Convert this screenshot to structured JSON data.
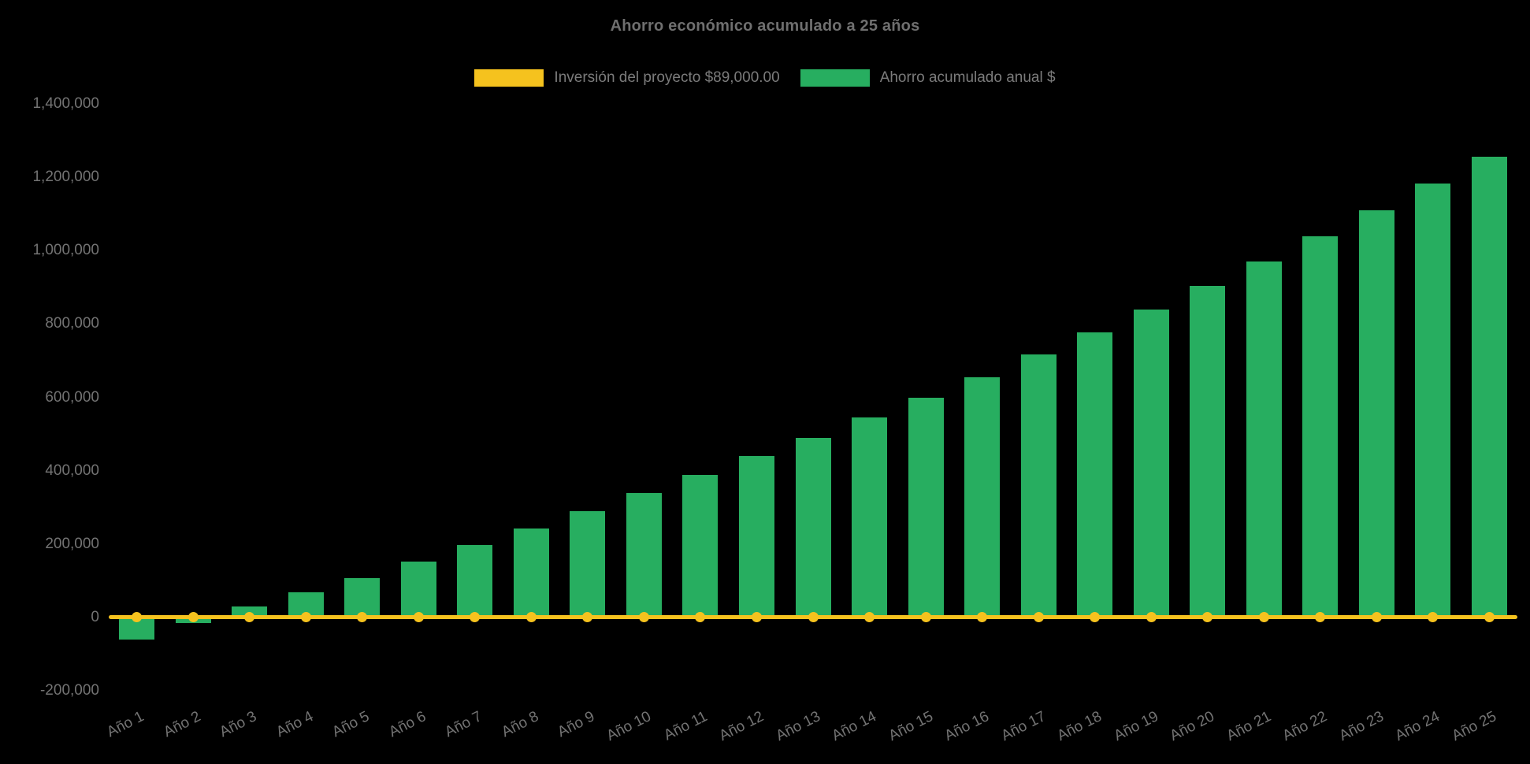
{
  "chart_data": {
    "type": "bar",
    "title": "Ahorro económico acumulado a 25 años",
    "background": "#000000",
    "grid": false,
    "legend_position": "top",
    "ylim": [
      -200000,
      1400000
    ],
    "ytick_step": 200000,
    "yticks": [
      "1,400,000",
      "1,200,000",
      "1,000,000",
      "800,000",
      "600,000",
      "400,000",
      "200,000",
      "0",
      "-200,000"
    ],
    "categories": [
      "Año 1",
      "Año 2",
      "Año 3",
      "Año 4",
      "Año 5",
      "Año 6",
      "Año 7",
      "Año 8",
      "Año 9",
      "Año 10",
      "Año 11",
      "Año 12",
      "Año 13",
      "Año 14",
      "Año 15",
      "Año 16",
      "Año 17",
      "Año 18",
      "Año 19",
      "Año 20",
      "Año 21",
      "Año 22",
      "Año 23",
      "Año 24",
      "Año 25"
    ],
    "series": [
      {
        "name": "Inversión del proyecto $89,000.00",
        "type": "line",
        "color": "#F5C21E",
        "values": [
          0,
          0,
          0,
          0,
          0,
          0,
          0,
          0,
          0,
          0,
          0,
          0,
          0,
          0,
          0,
          0,
          0,
          0,
          0,
          0,
          0,
          0,
          0,
          0,
          0
        ]
      },
      {
        "name": "Ahorro acumulado anual $",
        "type": "bar",
        "color": "#27AE60",
        "values": [
          -60000,
          -15000,
          30000,
          68000,
          108000,
          152000,
          197000,
          242000,
          290000,
          338000,
          389000,
          440000,
          490000,
          546000,
          599000,
          655000,
          717000,
          778000,
          839000,
          903000,
          970000,
          1039000,
          1111000,
          1183000,
          1257000
        ]
      }
    ]
  }
}
